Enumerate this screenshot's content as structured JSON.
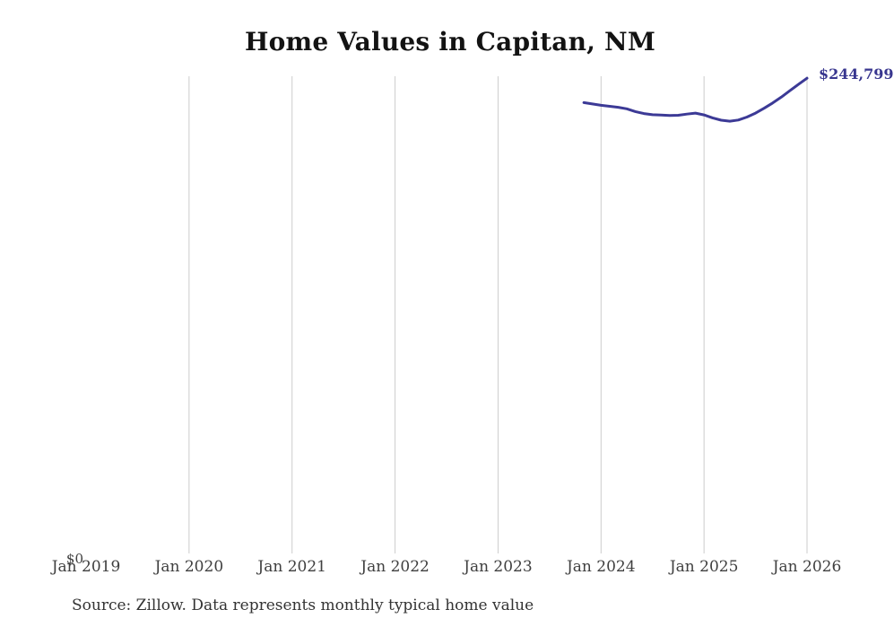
{
  "chart": {
    "title": "Home Values in Capitan, NM",
    "end_label": "$244,799",
    "y_zero_label": "$0",
    "source": "Source: Zillow. Data represents monthly typical home value",
    "colors": {
      "line": "#3c3a96",
      "end_label": "#38368f",
      "grid": "#cccccc",
      "axis_text": "#3f3f3f",
      "title_text": "#131313",
      "source_text": "#333333",
      "background": "#ffffff"
    }
  },
  "chart_data": {
    "type": "line",
    "title": "Home Values in Capitan, NM",
    "xlabel": "",
    "ylabel": "",
    "ylim": [
      0,
      245800
    ],
    "grid": "vertical-only",
    "legend": "none",
    "x_ticks": [
      {
        "label": "Jan 2019",
        "year": 2019,
        "gridline": false
      },
      {
        "label": "Jan 2020",
        "year": 2020,
        "gridline": true
      },
      {
        "label": "Jan 2021",
        "year": 2021,
        "gridline": true
      },
      {
        "label": "Jan 2022",
        "year": 2022,
        "gridline": true
      },
      {
        "label": "Jan 2023",
        "year": 2023,
        "gridline": true
      },
      {
        "label": "Jan 2024",
        "year": 2024,
        "gridline": true
      },
      {
        "label": "Jan 2025",
        "year": 2025,
        "gridline": true
      },
      {
        "label": "Jan 2026",
        "year": 2026,
        "gridline": true
      }
    ],
    "y_ticks": [
      {
        "label": "$0",
        "value": 0
      }
    ],
    "end_annotation": "$244,799",
    "series": [
      {
        "name": "Monthly typical home value",
        "x": [
          "2023-11",
          "2023-12",
          "2024-01",
          "2024-02",
          "2024-03",
          "2024-04",
          "2024-05",
          "2024-06",
          "2024-07",
          "2024-08",
          "2024-09",
          "2024-10",
          "2024-11",
          "2024-12",
          "2025-01",
          "2025-02",
          "2025-03",
          "2025-04",
          "2025-05",
          "2025-06",
          "2025-07",
          "2025-08",
          "2025-09",
          "2025-10",
          "2025-11",
          "2025-12",
          "2026-01"
        ],
        "values": [
          232300,
          231600,
          230900,
          230400,
          229900,
          229100,
          227700,
          226700,
          226100,
          225900,
          225700,
          225800,
          226400,
          226900,
          226000,
          224500,
          223300,
          222800,
          223400,
          224900,
          226900,
          229400,
          232100,
          235100,
          238400,
          241600,
          244799
        ]
      }
    ]
  }
}
